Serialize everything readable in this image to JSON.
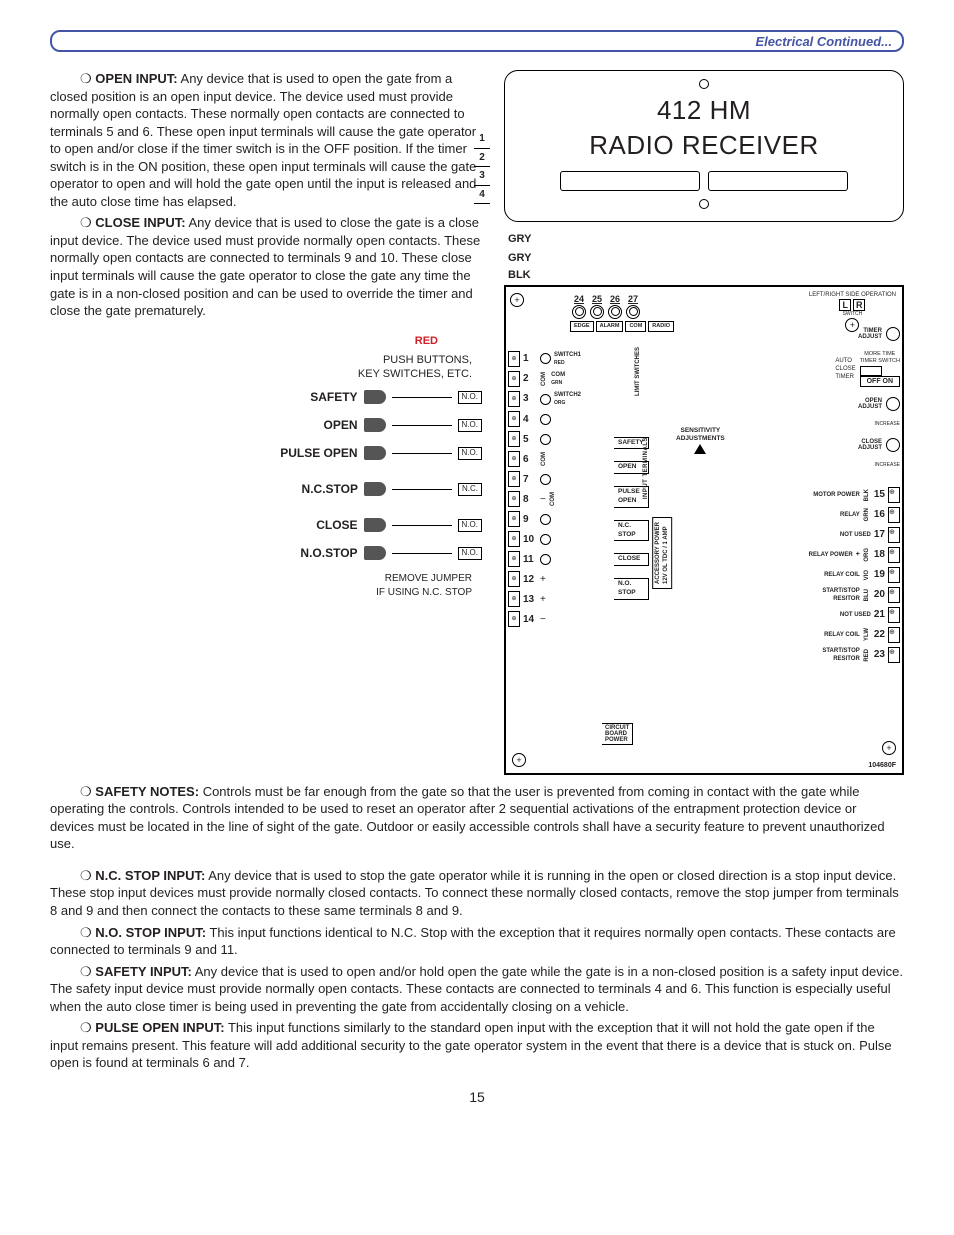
{
  "header": {
    "title": "Electrical Continued..."
  },
  "sections": {
    "open_input": {
      "heading": "OPEN INPUT:",
      "body": "Any device that is used to open the gate from a closed position is an open input device. The device used must provide normally open contacts. These normally open contacts are connected to terminals 5 and 6. These open input terminals will cause the gate operator to open and/or close if the timer switch is in the OFF position. If the timer switch is in the ON position, these open input terminals will cause the gate operator to open and will hold the gate open until the input is released and the auto close time has elapsed."
    },
    "close_input": {
      "heading": "CLOSE INPUT:",
      "body": "Any device that is used to close the gate is a close input device. The device used must provide normally open contacts. These normally open contacts are connected to terminals 9 and 10. These close input terminals will cause the gate operator to close the gate any time the gate is in a non-closed position and can be used to override the timer and close the gate prematurely."
    },
    "safety_notes": {
      "heading": "SAFETY NOTES:",
      "body": "Controls must be far enough from the gate so that the user is prevented from coming in contact with the gate while operating the controls. Controls intended to be used to reset an operator after 2 sequential activations of the entrapment protection device or devices must be located in the line of sight of the gate. Outdoor or easily accessible controls shall have a security feature to prevent unauthorized use."
    },
    "nc_stop": {
      "heading": "N.C. STOP INPUT:",
      "body": "Any device that is used to stop the gate operator while it is running in the open or closed direction is a stop input device. These stop input devices must provide normally closed contacts. To connect these normally closed contacts, remove the stop jumper from terminals 8 and 9 and then connect the contacts to these same terminals 8 and 9."
    },
    "no_stop": {
      "heading": "N.O. STOP INPUT:",
      "body": "This input functions identical to N.C. Stop with the exception that it requires normally open contacts. These contacts are connected to terminals 9 and 11."
    },
    "safety_input": {
      "heading": "SAFETY INPUT:",
      "body": "Any device that is used to open and/or hold open the gate while the gate is in a non-closed position is a safety input device. The safety input device must provide normally open contacts. These contacts are connected to terminals 4 and 6. This function is especially useful when the auto close timer is being used in preventing the gate from accidentally closing on a vehicle."
    },
    "pulse_open": {
      "heading": "PULSE OPEN INPUT:",
      "body": "This input functions similarly to the standard open input with the exception that it will not hold the gate open if the input remains present. This feature will add additional security to the gate operator system in the event that there is a device that is stuck on. Pulse open is found at terminals 6 and 7."
    }
  },
  "receiver": {
    "line1": "412 HM",
    "line2": "RADIO RECEIVER",
    "dips": [
      "1",
      "2",
      "3",
      "4"
    ]
  },
  "wires": {
    "gry1": "GRY",
    "gry2": "GRY",
    "red": "RED",
    "blk": "BLK"
  },
  "pushbuttons": {
    "title": "PUSH BUTTONS,\nKEY SWITCHES, ETC.",
    "rows": [
      {
        "label": "SAFETY",
        "contact": "N.O."
      },
      {
        "label": "OPEN",
        "contact": "N.O."
      },
      {
        "label": "PULSE OPEN",
        "contact": "N.O."
      },
      {
        "label": "N.C.STOP",
        "contact": "N.C."
      },
      {
        "label": "CLOSE",
        "contact": "N.O."
      },
      {
        "label": "N.O.STOP",
        "contact": "N.O."
      }
    ],
    "jumper_note": "REMOVE JUMPER\nIF USING N.C. STOP"
  },
  "board": {
    "top_terms": [
      {
        "num": "24",
        "label": "EDGE"
      },
      {
        "num": "25",
        "label": "ALARM"
      },
      {
        "num": "26",
        "label": "COM"
      },
      {
        "num": "27",
        "label": "RADIO"
      }
    ],
    "lr": {
      "caption": "LEFT/RIGHT SIDE OPERATION",
      "l": "L",
      "r": "R",
      "switch": "SWITCH"
    },
    "right_controls": {
      "timer_adjust": "TIMER\nADJUST",
      "more_time": "MORE TIME",
      "auto_close": "AUTO\nCLOSE\nTIMER",
      "timerswitch": "TIMER SWITCH",
      "offon": "OFF ON",
      "open_adjust": "OPEN\nADJUST",
      "increase1": "INCREASE",
      "close_adjust": "CLOSE\nADJUST",
      "increase2": "INCREASE"
    },
    "left_terms": [
      {
        "n": "1",
        "lab": "SWITCH1",
        "sub": "RED",
        "ring": true
      },
      {
        "n": "2",
        "lab": "COM",
        "sub": "GRN",
        "com": true
      },
      {
        "n": "3",
        "lab": "SWITCH2",
        "sub": "ORG",
        "ring": true
      },
      {
        "n": "4",
        "ring": true
      },
      {
        "n": "5",
        "ring": true
      },
      {
        "n": "6",
        "com": true
      },
      {
        "n": "7",
        "ring": true
      },
      {
        "n": "8",
        "sym": "minus",
        "com": true
      },
      {
        "n": "9",
        "ring": true
      },
      {
        "n": "10",
        "ring": true
      },
      {
        "n": "11",
        "ring": true
      },
      {
        "n": "12",
        "sym": "plus"
      },
      {
        "n": "13",
        "sym": "plus"
      },
      {
        "n": "14",
        "sym": "minus"
      }
    ],
    "center_inputs": [
      "SAFETY",
      "OPEN",
      "PULSE\nOPEN",
      "N.C.\nSTOP",
      "CLOSE",
      "N.O.\nSTOP"
    ],
    "sens": "SENSITIVITY\nADJUSTMENTS",
    "input_terminals": "INPUT TERMINALS",
    "limit_switches": "LIMIT SWITCHES",
    "accessory": "ACCESSORY POWER\n12V OL TDC / 1 AMP",
    "right_terms": [
      {
        "n": "15",
        "lab": "MOTOR POWER",
        "wire": "BLK"
      },
      {
        "n": "16",
        "lab": "RELAY",
        "wire": "GRN"
      },
      {
        "n": "17",
        "lab": "NOT USED"
      },
      {
        "n": "18",
        "lab": "RELAY POWER",
        "wire": "ORG",
        "sym": "+"
      },
      {
        "n": "19",
        "lab": "RELAY COIL",
        "wire": "VIO"
      },
      {
        "n": "20",
        "lab": "START/STOP\nRESITOR",
        "wire": "BLU"
      },
      {
        "n": "21",
        "lab": "NOT USED"
      },
      {
        "n": "22",
        "lab": "RELAY COIL",
        "wire": "YLW"
      },
      {
        "n": "23",
        "lab": "START/STOP\nRESITOR",
        "wire": "RED"
      }
    ],
    "cbp": "CIRCUIT\nBOARD\nPOWER",
    "partno": "104680F"
  },
  "page_number": "15",
  "colors": {
    "accent": "#4555a5",
    "red": "#d12026",
    "text": "#231f20"
  }
}
